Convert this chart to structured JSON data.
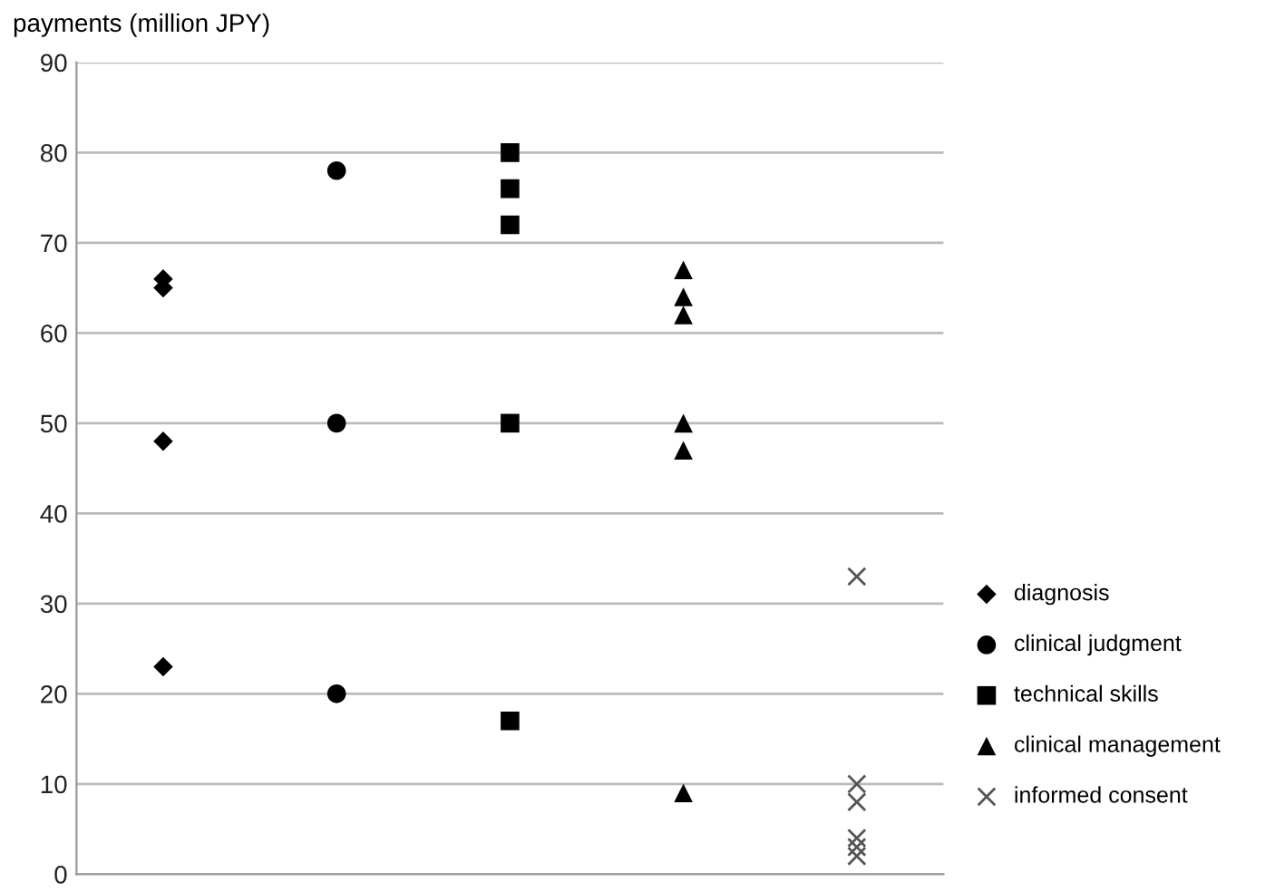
{
  "chart_data": {
    "type": "scatter",
    "ylabel": "payments (million JPY)",
    "categories": [
      null,
      null,
      null,
      null,
      null
    ],
    "ylim": [
      0,
      90
    ],
    "yticks": [
      0,
      10,
      20,
      30,
      40,
      50,
      60,
      70,
      80,
      90
    ],
    "grid": "y",
    "legend": "right",
    "series": [
      {
        "name": "diagnosis",
        "color": "#000000",
        "marker": "diamond",
        "values": [
          66,
          null,
          null,
          null,
          null
        ]
      },
      {
        "color": "#000000",
        "marker": "diamond",
        "values": [
          65,
          null,
          null,
          null,
          null
        ]
      },
      {
        "color": "#000000",
        "marker": "diamond",
        "values": [
          48,
          null,
          null,
          null,
          null
        ]
      },
      {
        "color": "#000000",
        "marker": "diamond",
        "values": [
          23,
          null,
          null,
          null,
          null
        ]
      },
      {
        "name": "clinical judgment",
        "color": "#000000",
        "marker": "circle",
        "values": [
          null,
          78,
          null,
          null,
          null
        ]
      },
      {
        "color": "#000000",
        "marker": "circle",
        "values": [
          null,
          50,
          null,
          null,
          null
        ]
      },
      {
        "color": "#000000",
        "marker": "circle",
        "values": [
          null,
          20,
          null,
          null,
          null
        ]
      },
      {
        "name": "technical skills",
        "color": "#000000",
        "marker": "square",
        "values": [
          null,
          null,
          80,
          null,
          null
        ]
      },
      {
        "color": "#000000",
        "marker": "square",
        "values": [
          null,
          null,
          76,
          null,
          null
        ]
      },
      {
        "color": "#000000",
        "marker": "square",
        "values": [
          null,
          null,
          72,
          null,
          null
        ]
      },
      {
        "color": "#000000",
        "marker": "square",
        "values": [
          null,
          null,
          50,
          null,
          null
        ]
      },
      {
        "color": "#000000",
        "marker": "square",
        "values": [
          null,
          null,
          17,
          null,
          null
        ]
      },
      {
        "name": "clinical management",
        "color": "#000000",
        "marker": "triangle",
        "values": [
          null,
          null,
          null,
          67,
          null
        ]
      },
      {
        "color": "#000000",
        "marker": "triangle",
        "values": [
          null,
          null,
          null,
          64,
          null
        ]
      },
      {
        "color": "#000000",
        "marker": "triangle",
        "values": [
          null,
          null,
          null,
          62,
          null
        ]
      },
      {
        "color": "#000000",
        "marker": "triangle",
        "values": [
          null,
          null,
          null,
          50,
          null
        ]
      },
      {
        "color": "#000000",
        "marker": "triangle",
        "values": [
          null,
          null,
          null,
          47,
          null
        ]
      },
      {
        "color": "#000000",
        "marker": "triangle",
        "values": [
          null,
          null,
          null,
          9,
          null
        ]
      },
      {
        "name": "informed consent",
        "color": "#555555",
        "marker": "cross",
        "values": [
          null,
          null,
          null,
          null,
          33
        ]
      },
      {
        "color": "#555555",
        "marker": "cross",
        "values": [
          null,
          null,
          null,
          null,
          10
        ]
      },
      {
        "color": "#555555",
        "marker": "cross",
        "values": [
          null,
          null,
          null,
          null,
          8
        ]
      },
      {
        "color": "#555555",
        "marker": "cross",
        "values": [
          null,
          null,
          null,
          null,
          4
        ]
      },
      {
        "color": "#555555",
        "marker": "cross",
        "values": [
          null,
          null,
          null,
          null,
          3
        ]
      },
      {
        "color": "#555555",
        "marker": "cross",
        "values": [
          null,
          null,
          null,
          null,
          2
        ]
      }
    ]
  }
}
